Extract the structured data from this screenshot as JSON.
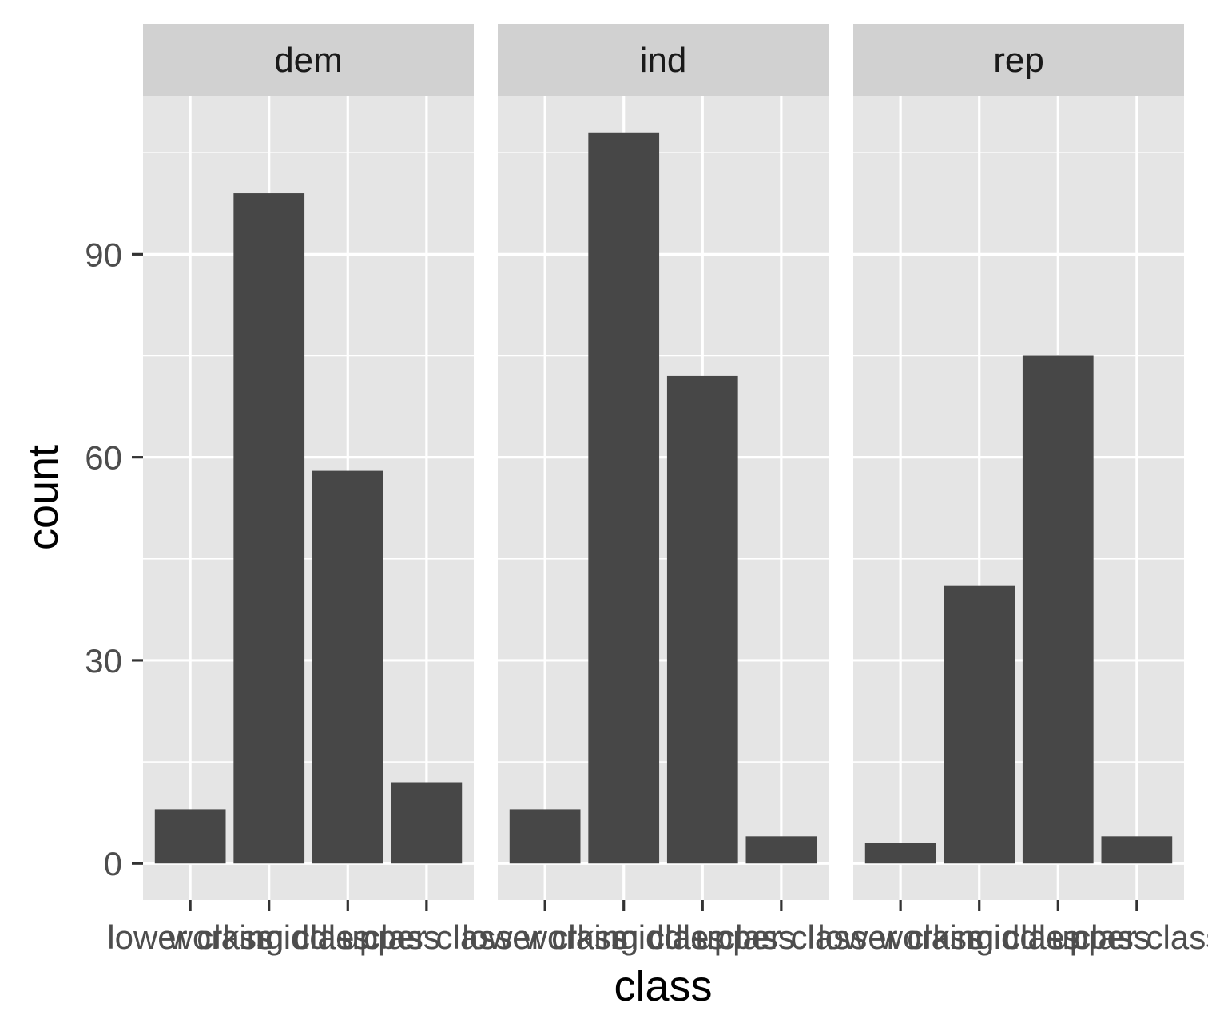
{
  "chart_data": {
    "type": "bar",
    "facet_variable": "party",
    "xlabel": "class",
    "ylabel": "count",
    "categories": [
      "lower class",
      "working class",
      "middle class",
      "upper class"
    ],
    "panels": [
      {
        "facet": "dem",
        "values": [
          8,
          99,
          58,
          12
        ]
      },
      {
        "facet": "ind",
        "values": [
          8,
          108,
          72,
          4
        ]
      },
      {
        "facet": "rep",
        "values": [
          3,
          41,
          75,
          4
        ]
      }
    ],
    "y_ticks": [
      0,
      30,
      60,
      90
    ],
    "ylim": [
      -5.4,
      113.4
    ],
    "grid": true,
    "legend": "none",
    "colors": {
      "bar": "#474747",
      "panel_background": "#e5e5e5",
      "strip_background": "#d1d1d1",
      "grid": "#ffffff"
    }
  }
}
